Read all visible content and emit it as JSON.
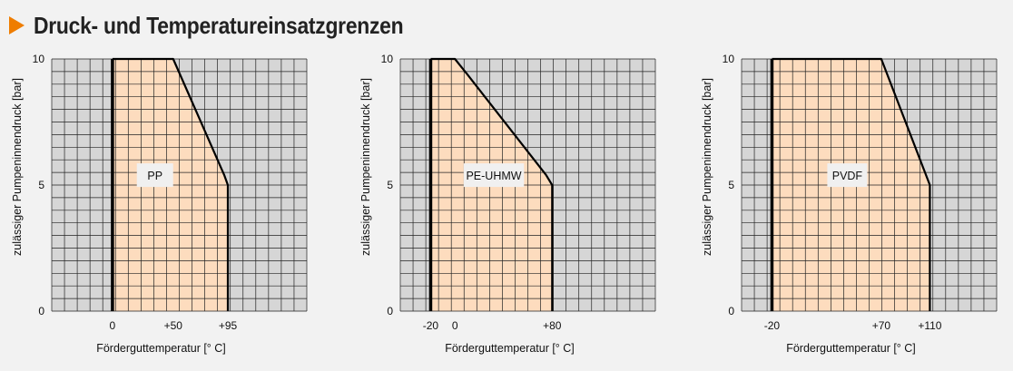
{
  "title": "Druck- und Temperatureinsatzgrenzen",
  "colors": {
    "accent_arrow": "#ef7d00",
    "fill": "#fddcbe",
    "grid_bg": "#d6d6d6",
    "grid_lines": "#222222"
  },
  "chart_data": [
    {
      "type": "area",
      "series": [
        {
          "name": "PP",
          "x": [
            0,
            0,
            50,
            92,
            95,
            95
          ],
          "y": [
            0,
            10,
            10,
            5.4,
            5,
            0
          ]
        }
      ],
      "xlabel": "Fördergut­temperatur [° C]",
      "ylabel": "zulässiger Pumpeninnendruck [bar]",
      "xlim": [
        -50,
        160
      ],
      "ylim": [
        0,
        10
      ],
      "x_ticks": [
        0,
        50,
        95
      ],
      "x_tick_labels": [
        "0",
        "+50",
        "+95"
      ],
      "y_ticks": [
        0,
        5,
        10
      ],
      "y_tick_labels": [
        "0",
        "5",
        "10"
      ],
      "series_label": "PP",
      "series_label_pos": [
        35,
        5.5
      ],
      "grid": true
    },
    {
      "type": "area",
      "series": [
        {
          "name": "PE-UHMW",
          "x": [
            -20,
            -20,
            0,
            10,
            75,
            80,
            80
          ],
          "y": [
            0,
            10,
            10,
            9.4,
            5.4,
            5,
            0
          ]
        }
      ],
      "xlabel": "Fördergut­temperatur [° C]",
      "ylabel": "zulässiger Pumpeninnendruck [bar]",
      "xlim": [
        -45,
        165
      ],
      "ylim": [
        0,
        10
      ],
      "x_ticks": [
        -20,
        0,
        80
      ],
      "x_tick_labels": [
        "-20",
        "0",
        "+80"
      ],
      "y_ticks": [
        0,
        5,
        10
      ],
      "y_tick_labels": [
        "0",
        "5",
        "10"
      ],
      "series_label": "PE-UHMW",
      "series_label_pos": [
        32,
        5.5
      ],
      "grid": true
    },
    {
      "type": "area",
      "series": [
        {
          "name": "PVDF",
          "x": [
            -20,
            -20,
            70,
            110,
            110
          ],
          "y": [
            0,
            10,
            10,
            5,
            0
          ]
        }
      ],
      "xlabel": "Fördergut­temperatur [° C]",
      "ylabel": "zulässiger Pumpeninnendruck [bar]",
      "xlim": [
        -45,
        165
      ],
      "ylim": [
        0,
        10
      ],
      "x_ticks": [
        -20,
        70,
        110
      ],
      "x_tick_labels": [
        "-20",
        "+70",
        "+110"
      ],
      "y_ticks": [
        0,
        5,
        10
      ],
      "y_tick_labels": [
        "0",
        "5",
        "10"
      ],
      "series_label": "PVDF",
      "series_label_pos": [
        42,
        5.5
      ],
      "grid": true
    }
  ]
}
